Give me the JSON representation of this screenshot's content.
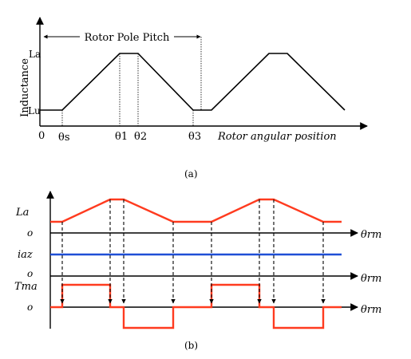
{
  "panel_a": {
    "caption": "(a)",
    "y_axis_label": "Inductance",
    "x_axis_label": "Rotor angular position",
    "pitch_label": "Rotor Pole Pitch",
    "level_high": "La",
    "level_low": "Lu",
    "origin": "0",
    "angles": [
      "θs",
      "θ1",
      "θ2",
      "θ3"
    ]
  },
  "panel_b": {
    "caption": "(b)",
    "row1_label": "La",
    "row2_label": "iaz",
    "row3_label": "Tma",
    "zero_label": "o",
    "axis_label": "θrm",
    "colors": {
      "inductance": "#ff3b1f",
      "current": "#1f4fd6",
      "torque": "#ff3b1f",
      "axis": "#000000"
    }
  }
}
